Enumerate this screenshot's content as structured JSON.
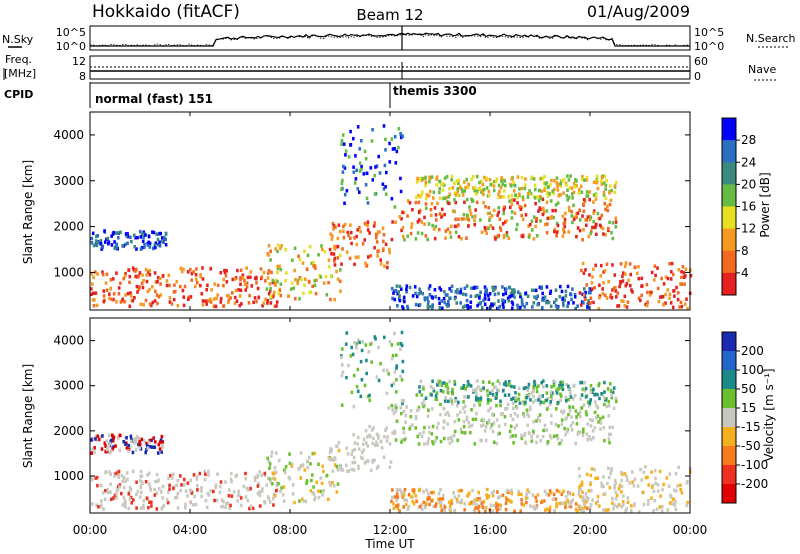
{
  "chart_data": {
    "type": "heatmap",
    "title": {
      "station": "Hokkaido (fitACF)",
      "beam": "Beam 12",
      "date": "01/Aug/2009"
    },
    "xlabel": "Time UT",
    "x_ticks": [
      "00:00",
      "04:00",
      "08:00",
      "12:00",
      "16:00",
      "20:00",
      "00:00"
    ],
    "xlim_hours": [
      0,
      24
    ],
    "top_panels": {
      "nsky": {
        "label": "N.Sky",
        "left_ticks": [
          "10^5",
          "10^0"
        ],
        "right_label": "N.Search",
        "right_ticks": [
          "10^5",
          "10^0"
        ]
      },
      "freq": {
        "label_line1": "Freq.",
        "label_line2": "[MHz]",
        "left_ticks": [
          "12",
          "8"
        ],
        "right_label": "Nave",
        "right_ticks": [
          "60",
          "0"
        ]
      },
      "cpid": {
        "label": "CPID",
        "segments": [
          {
            "label": "normal (fast) 151",
            "start_hour": 0,
            "end_hour": 12
          },
          {
            "label": "themis 3300",
            "start_hour": 12,
            "end_hour": 24
          }
        ]
      }
    },
    "power_panel": {
      "ylabel": "Slant Range [km]",
      "yticks": [
        "1000",
        "2000",
        "3000",
        "4000"
      ],
      "ylim_km": [
        180,
        4500
      ],
      "colorbar_label": "Power [dB]",
      "colorbar_ticks": [
        "4",
        "8",
        "12",
        "16",
        "20",
        "24",
        "28"
      ],
      "colorbar_colors": [
        "#0000ff",
        "#2a6fc0",
        "#3a8a80",
        "#66bb44",
        "#e6e020",
        "#f59a20",
        "#f26a20",
        "#e52020"
      ]
    },
    "velocity_panel": {
      "ylabel": "Slant Range [km]",
      "yticks": [
        "1000",
        "2000",
        "3000",
        "4000"
      ],
      "ylim_km": [
        180,
        4500
      ],
      "colorbar_label": "Velocity [m s⁻¹]",
      "colorbar_ticks": [
        "200",
        "100",
        "50",
        "15",
        "-15",
        "-50",
        "-100",
        "-200"
      ],
      "colorbar_colors": [
        "#1a2ab0",
        "#2266cc",
        "#1b8a88",
        "#6cc030",
        "#c8c8c0",
        "#f5b020",
        "#f57a20",
        "#ee3020",
        "#e00000"
      ]
    }
  }
}
